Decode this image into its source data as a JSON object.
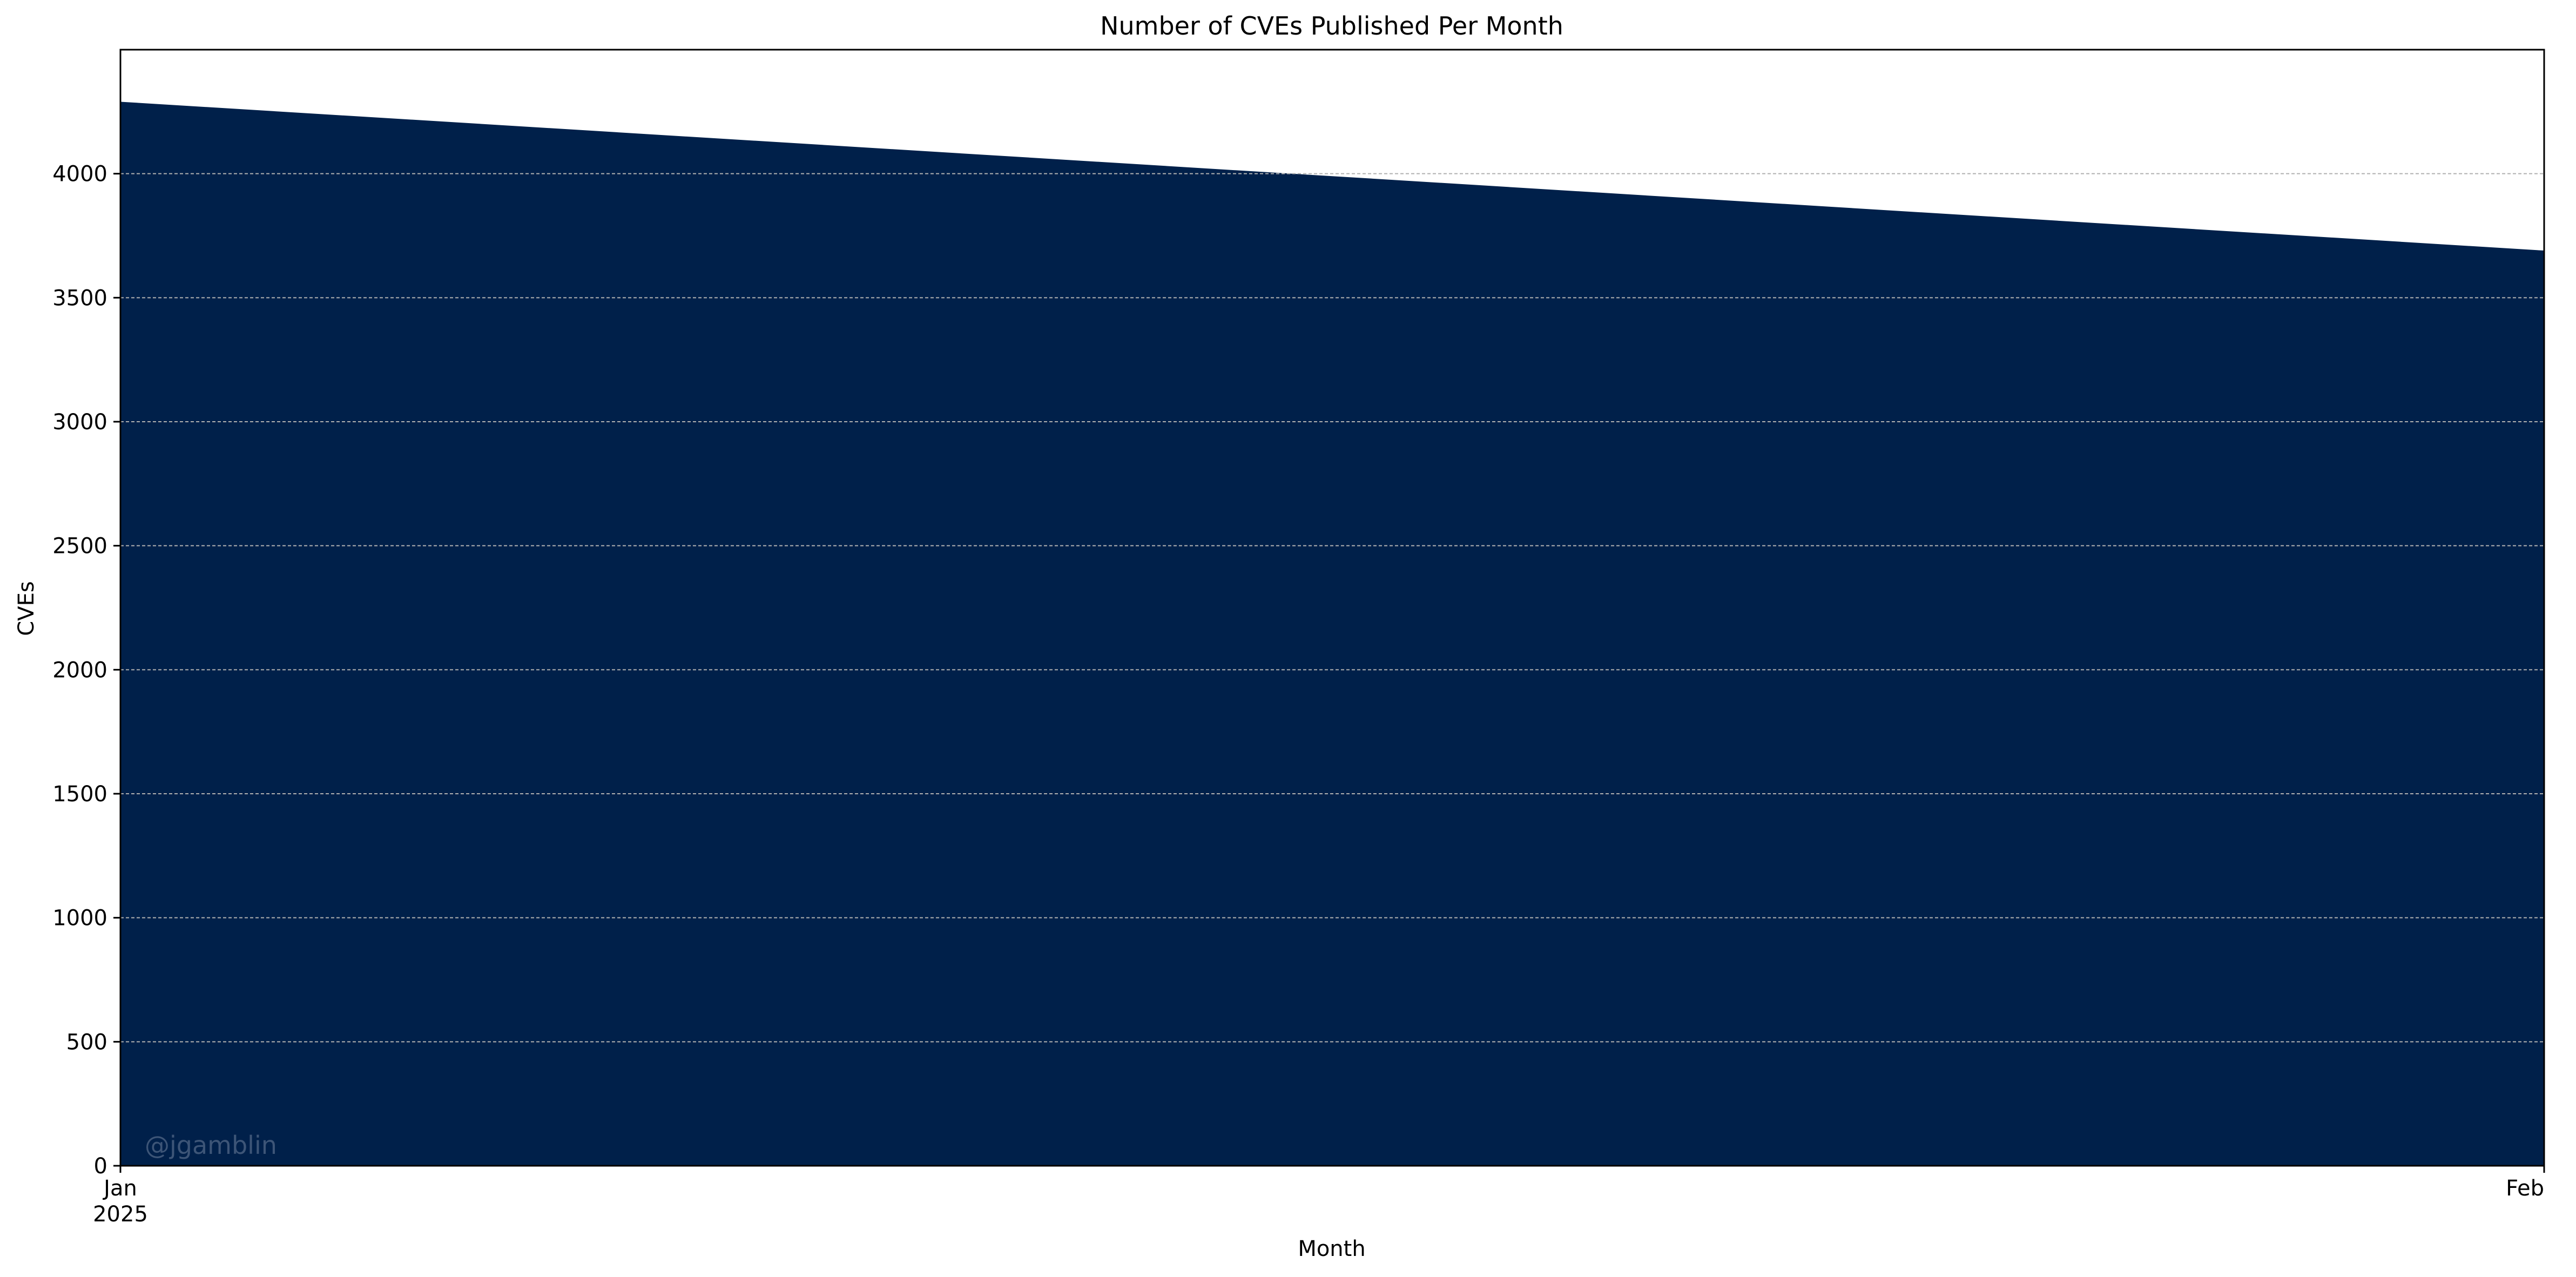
{
  "chart_data": {
    "type": "area",
    "title": "Number of CVEs Published Per Month",
    "xlabel": "Month",
    "ylabel": "CVEs",
    "x": [
      "2025-01",
      "2025-02"
    ],
    "x_tick_labels": [
      {
        "line1": "Jan",
        "line2": "2025"
      },
      {
        "line1": "Feb",
        "line2": ""
      }
    ],
    "values": [
      4290,
      3690
    ],
    "ylim": [
      0,
      4500
    ],
    "y_ticks": [
      0,
      500,
      1000,
      1500,
      2000,
      2500,
      3000,
      3500,
      4000
    ],
    "grid": {
      "axis": "y",
      "style": "dashed",
      "on": true
    },
    "fill_color": "#00204a",
    "watermark": "@jgamblin",
    "watermark_color": "#3d5577"
  }
}
